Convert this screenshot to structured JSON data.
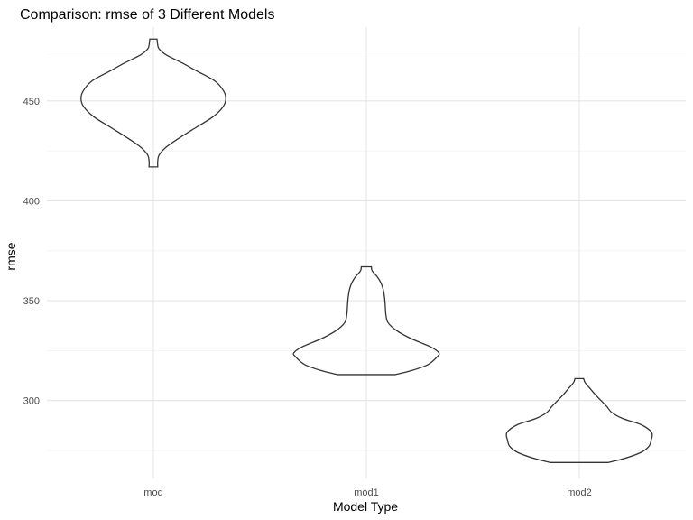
{
  "chart_data": {
    "type": "violin",
    "title": "Comparison: rmse of 3 Different Models",
    "xlabel": "Model Type",
    "ylabel": "rmse",
    "categories": [
      "mod",
      "mod1",
      "mod2"
    ],
    "ylim": [
      261,
      487
    ],
    "yticks": [
      300,
      350,
      400,
      450
    ],
    "grid": true,
    "series": [
      {
        "category": "mod",
        "min": 417,
        "max": 481,
        "density": [
          [
            417,
            0.06
          ],
          [
            420,
            0.06
          ],
          [
            423,
            0.08
          ],
          [
            427,
            0.18
          ],
          [
            432,
            0.38
          ],
          [
            437,
            0.6
          ],
          [
            442,
            0.82
          ],
          [
            447,
            0.96
          ],
          [
            451,
            1.0
          ],
          [
            455,
            0.97
          ],
          [
            460,
            0.85
          ],
          [
            465,
            0.6
          ],
          [
            469,
            0.4
          ],
          [
            473,
            0.18
          ],
          [
            476,
            0.08
          ],
          [
            478,
            0.06
          ],
          [
            481,
            0.05
          ]
        ]
      },
      {
        "category": "mod1",
        "min": 313,
        "max": 367,
        "density": [
          [
            313,
            0.4
          ],
          [
            315,
            0.62
          ],
          [
            318,
            0.85
          ],
          [
            322,
            0.98
          ],
          [
            324,
            1.0
          ],
          [
            327,
            0.88
          ],
          [
            331,
            0.62
          ],
          [
            335,
            0.42
          ],
          [
            339,
            0.3
          ],
          [
            343,
            0.27
          ],
          [
            348,
            0.26
          ],
          [
            352,
            0.25
          ],
          [
            356,
            0.23
          ],
          [
            359,
            0.2
          ],
          [
            362,
            0.15
          ],
          [
            365,
            0.08
          ],
          [
            367,
            0.07
          ]
        ]
      },
      {
        "category": "mod2",
        "min": 269,
        "max": 311,
        "density": [
          [
            269,
            0.4
          ],
          [
            271,
            0.62
          ],
          [
            274,
            0.85
          ],
          [
            277,
            0.96
          ],
          [
            280,
            0.99
          ],
          [
            284,
            1.0
          ],
          [
            288,
            0.85
          ],
          [
            291,
            0.6
          ],
          [
            294,
            0.45
          ],
          [
            297,
            0.38
          ],
          [
            300,
            0.3
          ],
          [
            303,
            0.22
          ],
          [
            306,
            0.15
          ],
          [
            309,
            0.08
          ],
          [
            311,
            0.06
          ]
        ]
      }
    ]
  }
}
